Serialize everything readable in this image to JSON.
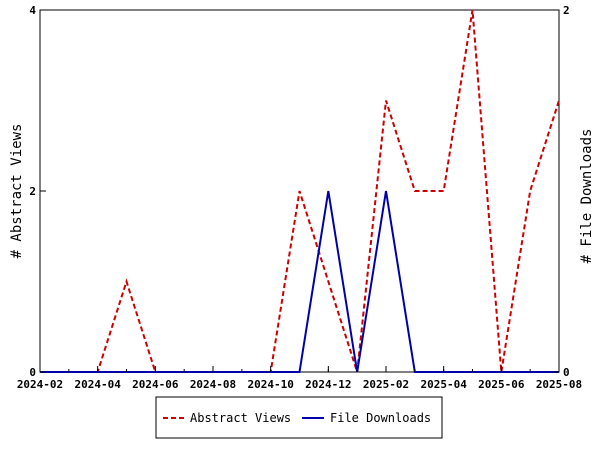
{
  "chart_data": {
    "type": "line",
    "x": [
      "2024-02",
      "2024-03",
      "2024-04",
      "2024-05",
      "2024-06",
      "2024-07",
      "2024-08",
      "2024-09",
      "2024-10",
      "2024-11",
      "2024-12",
      "2025-01",
      "2025-02",
      "2025-03",
      "2025-04",
      "2025-05",
      "2025-06",
      "2025-07",
      "2025-08"
    ],
    "x_tick_labels": [
      "2024-02",
      "2024-04",
      "2024-06",
      "2024-08",
      "2024-10",
      "2024-12",
      "2025-02",
      "2025-04",
      "2025-06",
      "2025-08"
    ],
    "series": [
      {
        "name": "Abstract Views",
        "axis": "left",
        "color": "#cc0000",
        "dash": "dashed",
        "values": [
          0,
          0,
          0,
          1,
          0,
          0,
          0,
          0,
          0,
          2,
          1,
          0,
          3,
          2,
          2,
          4,
          0,
          2,
          3
        ]
      },
      {
        "name": "File Downloads",
        "axis": "right",
        "color": "#0000aa",
        "dash": "solid",
        "values": [
          0,
          0,
          0,
          0,
          0,
          0,
          0,
          0,
          0,
          0,
          1,
          0,
          1,
          0,
          0,
          0,
          0,
          0,
          0
        ]
      }
    ],
    "ylabel_left": "# Abstract Views",
    "ylabel_right": "# File Downloads",
    "ylim_left": [
      0,
      4
    ],
    "ylim_right": [
      0,
      2
    ],
    "left_ticks": [
      0,
      2,
      4
    ],
    "right_ticks": [
      0,
      2
    ],
    "legend_position": "bottom-center",
    "grid": false
  }
}
